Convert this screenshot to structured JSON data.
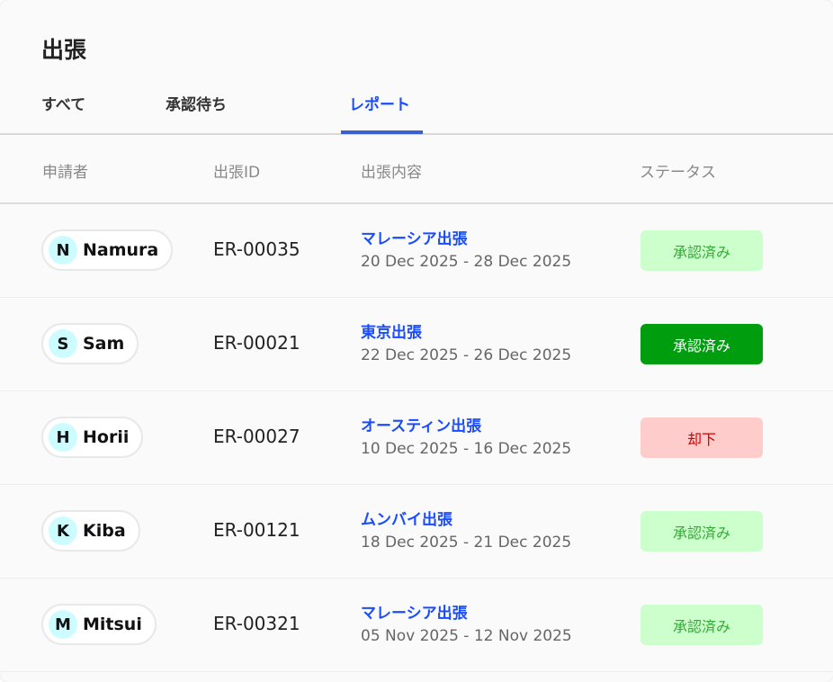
{
  "title": "出張",
  "tabs": [
    {
      "label": "すべて"
    },
    {
      "label": "承認待ち"
    },
    {
      "label": "レポート",
      "active": true
    }
  ],
  "columns": [
    "申請者",
    "出張ID",
    "出張内容",
    "ステータス"
  ],
  "colors": {
    "accent": "#1a4cff",
    "approved_light_bg": "#ccffcc",
    "approved_light_text": "#33aa33",
    "approved_solid_bg": "#009e0f",
    "rejected_bg": "#ffcccc",
    "rejected_text": "#cc0000"
  },
  "rows": [
    {
      "initial": "N",
      "name": "Namura",
      "id": "ER-00035",
      "trip": "マレーシア出張",
      "dates": "20 Dec 2025 - 28 Dec 2025",
      "status": "承認済み",
      "style": "light"
    },
    {
      "initial": "S",
      "name": "Sam",
      "id": "ER-00021",
      "trip": "東京出張",
      "dates": "22 Dec 2025 - 26 Dec 2025",
      "status": "承認済み",
      "style": "solid"
    },
    {
      "initial": "H",
      "name": "Horii",
      "id": "ER-00027",
      "trip": "オースティン出張",
      "dates": "10 Dec 2025 - 16 Dec 2025",
      "status": "却下",
      "style": "rejected"
    },
    {
      "initial": "K",
      "name": "Kiba",
      "id": "ER-00121",
      "trip": "ムンバイ出張",
      "dates": "18 Dec 2025 - 21 Dec 2025",
      "status": "承認済み",
      "style": "light"
    },
    {
      "initial": "M",
      "name": "Mitsui",
      "id": "ER-00321",
      "trip": "マレーシア出張",
      "dates": "05 Nov 2025 - 12 Nov 2025",
      "status": "承認済み",
      "style": "light"
    }
  ]
}
